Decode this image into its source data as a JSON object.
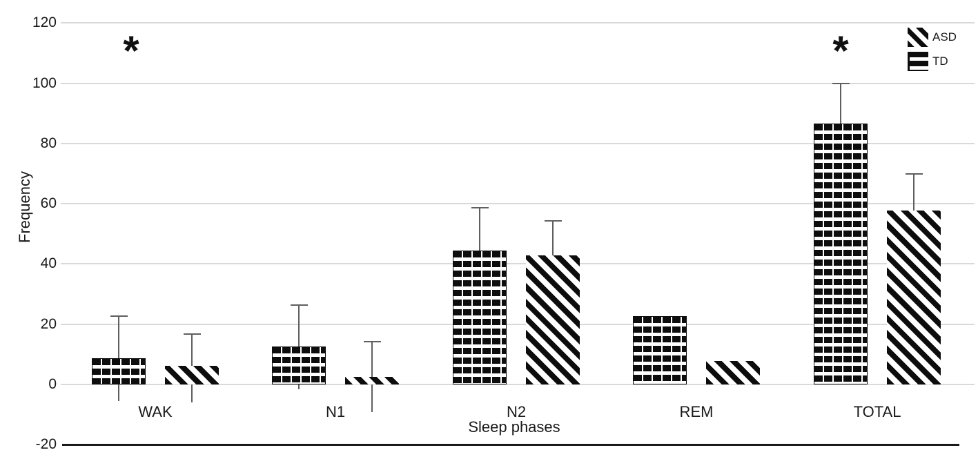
{
  "chart_data": {
    "type": "bar",
    "title": "",
    "xlabel": "Sleep phases",
    "ylabel": "Frequency",
    "categories": [
      "WAK",
      "N1",
      "N2",
      "REM",
      "TOTAL"
    ],
    "series": [
      {
        "name": "TD",
        "pattern": "horizontal-dash",
        "values": [
          8.7,
          12.5,
          44.4,
          22.8,
          86.7
        ],
        "err_top": [
          22.8,
          26.4,
          58.6,
          null,
          100
        ],
        "err_bottom": [
          -5.5,
          -1.6,
          null,
          null,
          null
        ]
      },
      {
        "name": "ASD",
        "pattern": "diagonal-stripe",
        "values": [
          6.2,
          2.5,
          42.8,
          7.8,
          57.7
        ],
        "err_top": [
          16.8,
          14.3,
          54.3,
          null,
          69.9
        ],
        "err_bottom": [
          -6.0,
          -9.2,
          null,
          null,
          null
        ]
      }
    ],
    "legend": {
      "position": "top-right",
      "entries": [
        {
          "label": "ASD",
          "pattern": "diagonal-stripe"
        },
        {
          "label": "TD",
          "pattern": "horizontal-dash"
        }
      ]
    },
    "y_ticks": [
      120,
      100,
      80,
      60,
      40,
      20,
      0,
      -20
    ],
    "ylim": [
      -20,
      120
    ],
    "grid": true,
    "significance": [
      {
        "category": "WAK",
        "symbol": "*"
      },
      {
        "category": "TOTAL",
        "symbol": "*"
      }
    ]
  },
  "colors": {
    "bar": "#0d0d0d",
    "gridline": "#d9d9d9",
    "baseline": "#1a1a1a",
    "error_bar": "#5f5f5f",
    "text": "#1a1a1a",
    "background": "#ffffff"
  }
}
